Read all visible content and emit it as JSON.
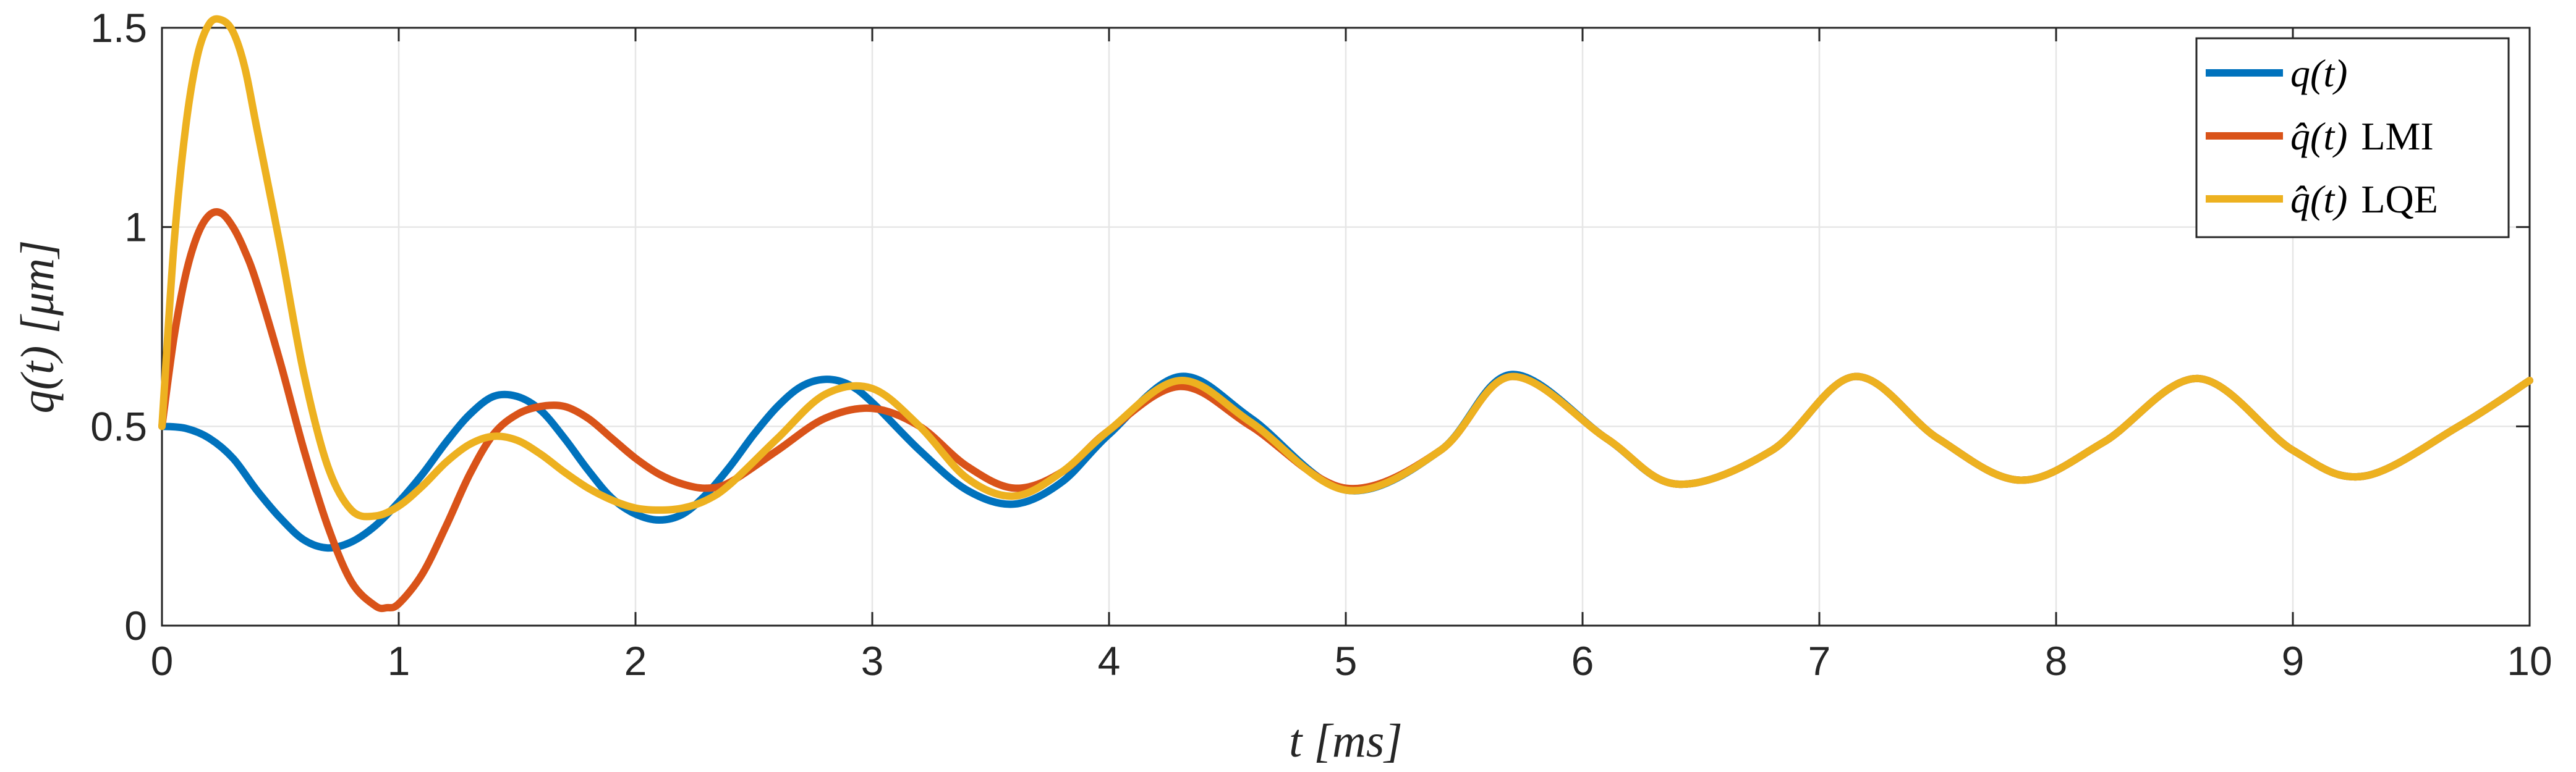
{
  "chart_data": {
    "type": "line",
    "title": "",
    "xlabel": "t [ms]",
    "ylabel": "q(t) [μm]",
    "xlim": [
      0,
      10
    ],
    "ylim": [
      0,
      1.5
    ],
    "xticks": [
      0,
      1,
      2,
      3,
      4,
      5,
      6,
      7,
      8,
      9,
      10
    ],
    "yticks": [
      0,
      0.5,
      1,
      1.5
    ],
    "xtick_labels": [
      "0",
      "1",
      "2",
      "3",
      "4",
      "5",
      "6",
      "7",
      "8",
      "9",
      "10"
    ],
    "ytick_labels": [
      "0",
      "0.5",
      "1",
      "1.5"
    ],
    "grid": true,
    "legend_position": "top-right",
    "series": [
      {
        "name": "q(t)",
        "legend_main": "q(t)",
        "legend_suffix": "",
        "color": "#0072BD",
        "x": [
          0,
          0.1,
          0.2,
          0.3,
          0.4,
          0.5,
          0.6,
          0.7,
          0.8,
          0.9,
          1.0,
          1.1,
          1.2,
          1.3,
          1.4,
          1.5,
          1.6,
          1.7,
          1.8,
          1.9,
          2.0,
          2.1,
          2.2,
          2.3,
          2.4,
          2.5,
          2.6,
          2.7,
          2.8,
          2.9,
          3.0,
          3.2,
          3.4,
          3.6,
          3.8,
          4.0,
          4.3,
          4.6,
          5.0,
          5.4,
          5.7,
          6.1,
          6.4,
          6.8,
          7.15,
          7.5,
          7.85,
          8.2,
          8.6,
          9.0,
          9.3,
          9.7,
          10.0
        ],
        "y": [
          0.5,
          0.495,
          0.47,
          0.42,
          0.34,
          0.27,
          0.215,
          0.195,
          0.21,
          0.25,
          0.31,
          0.38,
          0.46,
          0.53,
          0.575,
          0.575,
          0.54,
          0.47,
          0.39,
          0.32,
          0.28,
          0.265,
          0.28,
          0.33,
          0.4,
          0.48,
          0.55,
          0.6,
          0.618,
          0.605,
          0.56,
          0.44,
          0.34,
          0.305,
          0.36,
          0.48,
          0.625,
          0.52,
          0.34,
          0.44,
          0.63,
          0.47,
          0.355,
          0.44,
          0.625,
          0.47,
          0.365,
          0.46,
          0.62,
          0.44,
          0.375,
          0.5,
          0.615
        ]
      },
      {
        "name": "q̂(t) LMI",
        "legend_main": "q̂(t)",
        "legend_suffix": "LMI",
        "color": "#D95319",
        "x": [
          0,
          0.05,
          0.1,
          0.15,
          0.2,
          0.25,
          0.3,
          0.35,
          0.4,
          0.5,
          0.6,
          0.7,
          0.8,
          0.9,
          0.95,
          1.0,
          1.1,
          1.2,
          1.3,
          1.4,
          1.5,
          1.6,
          1.7,
          1.8,
          1.9,
          2.0,
          2.1,
          2.2,
          2.3,
          2.4,
          2.6,
          2.8,
          3.0,
          3.2,
          3.4,
          3.6,
          3.8,
          4.0,
          4.3,
          4.6,
          5.0,
          5.4,
          5.7,
          6.1,
          6.4,
          6.8,
          7.15,
          7.5,
          7.85,
          8.2,
          8.6,
          9.0,
          9.3,
          9.7,
          10.0
        ],
        "y": [
          0.5,
          0.72,
          0.88,
          0.98,
          1.03,
          1.035,
          1.0,
          0.94,
          0.86,
          0.66,
          0.44,
          0.25,
          0.11,
          0.05,
          0.045,
          0.055,
          0.13,
          0.25,
          0.38,
          0.48,
          0.53,
          0.55,
          0.55,
          0.52,
          0.47,
          0.42,
          0.38,
          0.355,
          0.345,
          0.36,
          0.44,
          0.52,
          0.545,
          0.5,
          0.4,
          0.345,
          0.385,
          0.49,
          0.6,
          0.5,
          0.345,
          0.44,
          0.625,
          0.47,
          0.355,
          0.44,
          0.625,
          0.47,
          0.365,
          0.46,
          0.62,
          0.44,
          0.375,
          0.5,
          0.615
        ]
      },
      {
        "name": "q̂(t) LQE",
        "legend_main": "q̂(t)",
        "legend_suffix": "LQE",
        "color": "#EDB120",
        "x": [
          0,
          0.05,
          0.1,
          0.15,
          0.2,
          0.25,
          0.3,
          0.35,
          0.4,
          0.5,
          0.6,
          0.7,
          0.8,
          0.9,
          1.0,
          1.1,
          1.2,
          1.3,
          1.4,
          1.5,
          1.6,
          1.7,
          1.8,
          1.9,
          2.0,
          2.1,
          2.2,
          2.3,
          2.4,
          2.6,
          2.8,
          3.0,
          3.2,
          3.4,
          3.6,
          3.8,
          4.0,
          4.3,
          4.6,
          5.0,
          5.4,
          5.7,
          6.1,
          6.4,
          6.8,
          7.15,
          7.5,
          7.85,
          8.2,
          8.6,
          9.0,
          9.3,
          9.7,
          10.0
        ],
        "y": [
          0.5,
          0.95,
          1.25,
          1.43,
          1.51,
          1.52,
          1.49,
          1.4,
          1.25,
          0.95,
          0.63,
          0.4,
          0.29,
          0.275,
          0.3,
          0.35,
          0.41,
          0.455,
          0.475,
          0.465,
          0.43,
          0.385,
          0.345,
          0.315,
          0.295,
          0.29,
          0.295,
          0.315,
          0.355,
          0.47,
          0.58,
          0.595,
          0.5,
          0.37,
          0.325,
          0.385,
          0.49,
          0.615,
          0.51,
          0.34,
          0.44,
          0.625,
          0.47,
          0.355,
          0.44,
          0.625,
          0.47,
          0.365,
          0.46,
          0.62,
          0.44,
          0.375,
          0.5,
          0.615
        ]
      }
    ]
  }
}
